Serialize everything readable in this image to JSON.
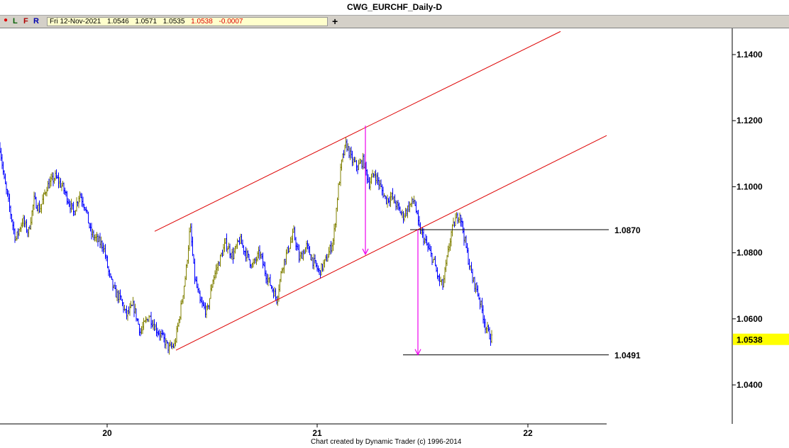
{
  "window": {
    "title": "CWG_EURCHF_Daily-D"
  },
  "toolbar": {
    "dot_icon": "●",
    "L": "L",
    "F": "F",
    "R": "R",
    "plus": "+",
    "quote": {
      "date": "Fri 12-Nov-2021",
      "open": "1.0546",
      "high": "1.0571",
      "low": "1.0535",
      "close": "1.0538",
      "change": "-0.0007"
    }
  },
  "colors": {
    "up_bar": "#808000",
    "down_bar": "#0000ff",
    "channel": "#dd0000",
    "projection": "#ee00ee",
    "current_price_bg": "#ffff00"
  },
  "footer": {
    "credit": "Chart created by Dynamic Trader  (c) 1996-2014"
  },
  "chart_data": {
    "type": "bar",
    "style": "ohlc",
    "x_tick_labels": [
      "20",
      "21",
      "22"
    ],
    "y_ticks": [
      "1.1400",
      "1.1200",
      "1.1000",
      "1.0800",
      "1.0600",
      "1.0400"
    ],
    "ylim": [
      1.0315,
      1.1465
    ],
    "current_price": "1.0538",
    "level_labels": [
      "1.0870",
      "1.0491"
    ],
    "keypoints": [
      [
        0,
        1.112
      ],
      [
        6,
        1.102
      ],
      [
        14,
        1.093
      ],
      [
        22,
        1.084
      ],
      [
        32,
        1.09
      ],
      [
        40,
        1.086
      ],
      [
        48,
        1.096
      ],
      [
        56,
        1.093
      ],
      [
        66,
        1.1
      ],
      [
        78,
        1.103
      ],
      [
        88,
        1.1
      ],
      [
        96,
        1.096
      ],
      [
        104,
        1.092
      ],
      [
        112,
        1.098
      ],
      [
        120,
        1.094
      ],
      [
        128,
        1.086
      ],
      [
        136,
        1.084
      ],
      [
        146,
        1.082
      ],
      [
        154,
        1.073
      ],
      [
        162,
        1.068
      ],
      [
        170,
        1.066
      ],
      [
        178,
        1.061
      ],
      [
        188,
        1.064
      ],
      [
        198,
        1.056
      ],
      [
        210,
        1.061
      ],
      [
        220,
        1.057
      ],
      [
        230,
        1.054
      ],
      [
        238,
        1.051
      ],
      [
        246,
        1.052
      ],
      [
        254,
        1.062
      ],
      [
        262,
        1.074
      ],
      [
        268,
        1.088
      ],
      [
        274,
        1.073
      ],
      [
        282,
        1.065
      ],
      [
        292,
        1.062
      ],
      [
        300,
        1.072
      ],
      [
        310,
        1.078
      ],
      [
        318,
        1.083
      ],
      [
        328,
        1.079
      ],
      [
        338,
        1.084
      ],
      [
        346,
        1.08
      ],
      [
        356,
        1.076
      ],
      [
        366,
        1.08
      ],
      [
        374,
        1.074
      ],
      [
        382,
        1.07
      ],
      [
        390,
        1.066
      ],
      [
        398,
        1.076
      ],
      [
        406,
        1.081
      ],
      [
        414,
        1.086
      ],
      [
        422,
        1.078
      ],
      [
        432,
        1.082
      ],
      [
        440,
        1.078
      ],
      [
        450,
        1.074
      ],
      [
        460,
        1.078
      ],
      [
        470,
        1.084
      ],
      [
        476,
        1.098
      ],
      [
        482,
        1.108
      ],
      [
        488,
        1.113
      ],
      [
        496,
        1.108
      ],
      [
        504,
        1.106
      ],
      [
        512,
        1.108
      ],
      [
        520,
        1.101
      ],
      [
        528,
        1.104
      ],
      [
        536,
        1.1
      ],
      [
        544,
        1.096
      ],
      [
        552,
        1.097
      ],
      [
        560,
        1.094
      ],
      [
        568,
        1.091
      ],
      [
        576,
        1.094
      ],
      [
        584,
        1.096
      ],
      [
        590,
        1.088
      ],
      [
        596,
        1.085
      ],
      [
        604,
        1.081
      ],
      [
        612,
        1.077
      ],
      [
        618,
        1.072
      ],
      [
        624,
        1.07
      ],
      [
        630,
        1.078
      ],
      [
        636,
        1.086
      ],
      [
        642,
        1.09
      ],
      [
        648,
        1.092
      ],
      [
        654,
        1.085
      ],
      [
        660,
        1.078
      ],
      [
        666,
        1.072
      ],
      [
        672,
        1.069
      ],
      [
        678,
        1.064
      ],
      [
        684,
        1.058
      ],
      [
        690,
        1.055
      ],
      [
        694,
        1.0538
      ]
    ],
    "channel_lines": [
      {
        "x1": 218,
        "y1": 1.0865,
        "x2": 790,
        "y2": 1.147
      },
      {
        "x1": 248,
        "y1": 1.0505,
        "x2": 855,
        "y2": 1.1155
      }
    ],
    "horizontal_levels": [
      {
        "x1": 578,
        "x2": 858,
        "y": 1.087,
        "label": "1.0870"
      },
      {
        "x1": 568,
        "x2": 858,
        "y": 1.0491,
        "label": "1.0491"
      }
    ],
    "projection_arrows": [
      {
        "x": 515,
        "y_from": 1.1185,
        "y_to": 1.0795
      },
      {
        "x": 589,
        "y_from": 1.087,
        "y_to": 1.0491
      }
    ]
  }
}
